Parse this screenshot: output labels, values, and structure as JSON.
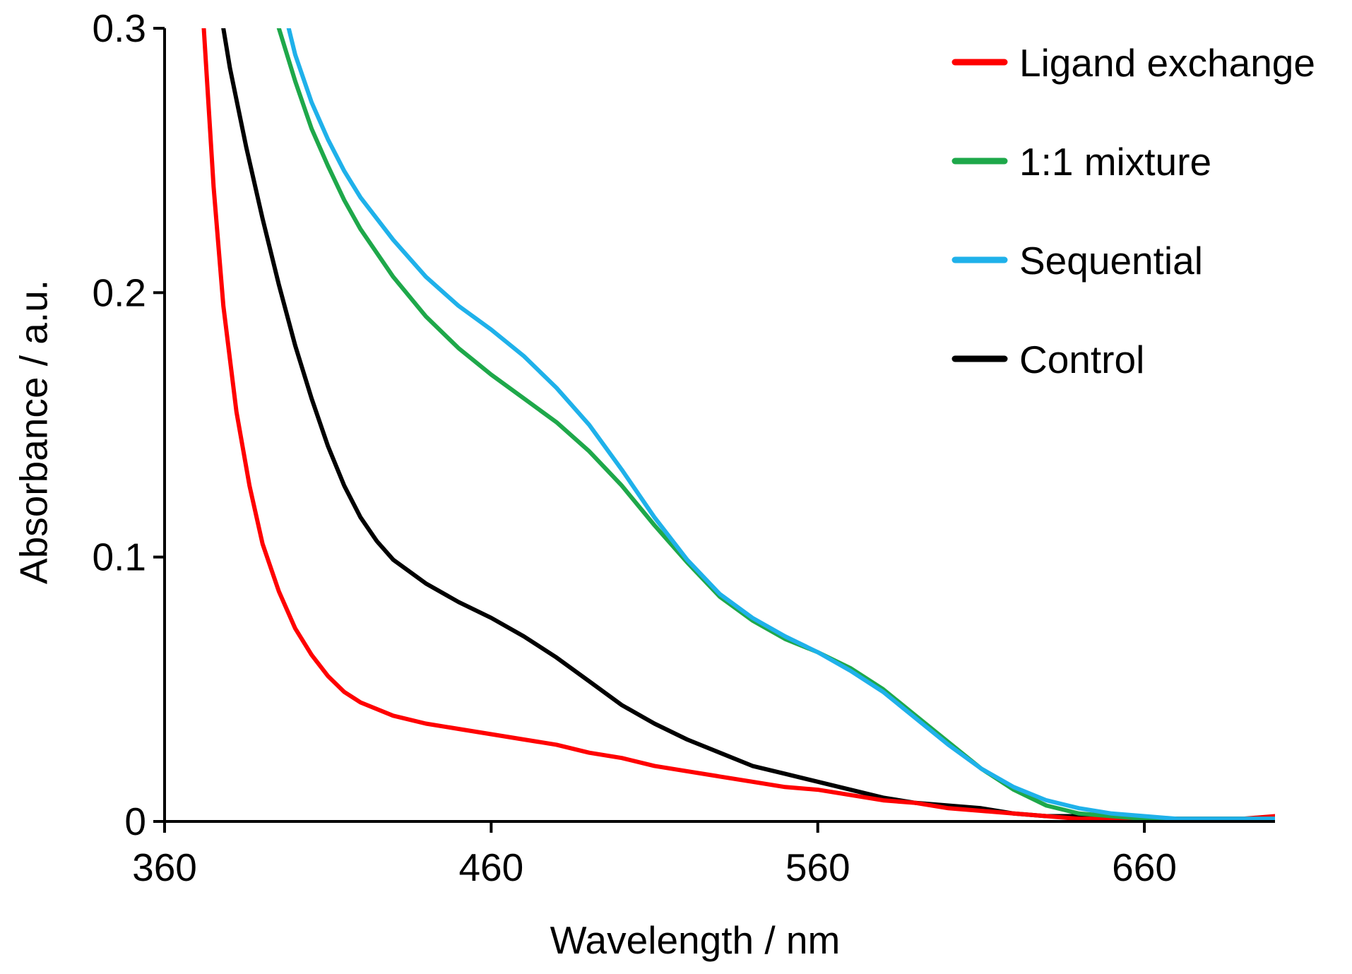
{
  "chart_data": {
    "type": "line",
    "title": "",
    "xlabel": "Wavelength / nm",
    "ylabel": "Absorbance  / a.u.",
    "xlim": [
      360,
      700
    ],
    "ylim": [
      0,
      0.3
    ],
    "grid": false,
    "legend_position": "top-right",
    "xticks": [
      360,
      460,
      560,
      660
    ],
    "xtick_labels": [
      "360",
      "460",
      "560",
      "660"
    ],
    "yticks": [
      0,
      0.1,
      0.2,
      0.3
    ],
    "ytick_labels": [
      "0",
      "0.1",
      "0.2",
      "0.3"
    ],
    "series": [
      {
        "name": "Ligand exchange",
        "color": "#ff0000",
        "x": [
          372,
          375,
          378,
          382,
          386,
          390,
          395,
          400,
          405,
          410,
          415,
          420,
          430,
          440,
          450,
          460,
          470,
          480,
          490,
          500,
          510,
          520,
          530,
          540,
          550,
          560,
          570,
          580,
          590,
          600,
          610,
          620,
          630,
          640,
          650,
          660,
          670,
          680,
          690,
          700
        ],
        "y": [
          0.3,
          0.24,
          0.195,
          0.155,
          0.127,
          0.105,
          0.087,
          0.073,
          0.063,
          0.055,
          0.049,
          0.045,
          0.04,
          0.037,
          0.035,
          0.033,
          0.031,
          0.029,
          0.026,
          0.024,
          0.021,
          0.019,
          0.017,
          0.015,
          0.013,
          0.012,
          0.01,
          0.008,
          0.007,
          0.005,
          0.004,
          0.003,
          0.002,
          0.001,
          0.001,
          0.001,
          0.001,
          0.001,
          0.001,
          0.002
        ]
      },
      {
        "name": "1:1 mixture",
        "color": "#1ea84a",
        "x": [
          395,
          400,
          405,
          410,
          415,
          420,
          430,
          440,
          450,
          460,
          470,
          480,
          490,
          500,
          510,
          520,
          530,
          540,
          550,
          560,
          570,
          580,
          590,
          600,
          610,
          620,
          630,
          640,
          650,
          660,
          670,
          680,
          690,
          700
        ],
        "y": [
          0.3,
          0.28,
          0.262,
          0.248,
          0.235,
          0.224,
          0.206,
          0.191,
          0.179,
          0.169,
          0.16,
          0.151,
          0.14,
          0.127,
          0.112,
          0.098,
          0.085,
          0.076,
          0.069,
          0.064,
          0.058,
          0.05,
          0.04,
          0.03,
          0.02,
          0.012,
          0.006,
          0.003,
          0.002,
          0.001,
          0.001,
          0.001,
          0.001,
          0.001
        ]
      },
      {
        "name": "Sequential",
        "color": "#1fb1ea",
        "x": [
          398,
          400,
          405,
          410,
          415,
          420,
          430,
          440,
          450,
          460,
          470,
          480,
          490,
          500,
          510,
          520,
          530,
          540,
          550,
          560,
          570,
          580,
          590,
          600,
          610,
          620,
          630,
          640,
          650,
          660,
          670,
          680,
          690,
          700
        ],
        "y": [
          0.3,
          0.29,
          0.272,
          0.258,
          0.246,
          0.236,
          0.22,
          0.206,
          0.195,
          0.186,
          0.176,
          0.164,
          0.15,
          0.133,
          0.115,
          0.099,
          0.086,
          0.077,
          0.07,
          0.064,
          0.057,
          0.049,
          0.039,
          0.029,
          0.02,
          0.013,
          0.008,
          0.005,
          0.003,
          0.002,
          0.001,
          0.001,
          0.001,
          0.001
        ]
      },
      {
        "name": "Control",
        "color": "#000000",
        "x": [
          378,
          380,
          385,
          390,
          395,
          400,
          405,
          410,
          415,
          420,
          425,
          430,
          440,
          450,
          460,
          470,
          480,
          490,
          500,
          510,
          520,
          530,
          540,
          550,
          560,
          570,
          580,
          590,
          600,
          610,
          620,
          630,
          640,
          650,
          660,
          670,
          680,
          690,
          700
        ],
        "y": [
          0.3,
          0.285,
          0.255,
          0.228,
          0.203,
          0.18,
          0.16,
          0.142,
          0.127,
          0.115,
          0.106,
          0.099,
          0.09,
          0.083,
          0.077,
          0.07,
          0.062,
          0.053,
          0.044,
          0.037,
          0.031,
          0.026,
          0.021,
          0.018,
          0.015,
          0.012,
          0.009,
          0.007,
          0.006,
          0.005,
          0.003,
          0.002,
          0.002,
          0.001,
          0.001,
          0.001,
          0.001,
          0.001,
          0.001
        ]
      }
    ]
  }
}
